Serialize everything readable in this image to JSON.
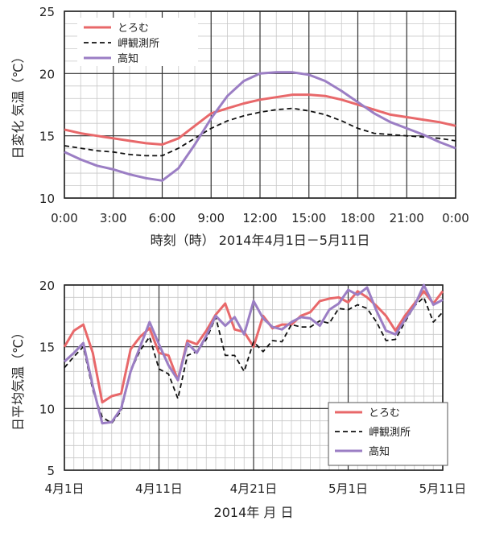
{
  "chart_data": [
    {
      "type": "line",
      "xlabel": "時刻（時） 2014年4月1日－5月11日",
      "ylabel": "日変化  気温（℃）",
      "x_ticks": [
        "0:00",
        "3:00",
        "6:00",
        "9:00",
        "12:00",
        "15:00",
        "18:00",
        "21:00",
        "0:00"
      ],
      "xlim": [
        0,
        24
      ],
      "ylim": [
        10,
        25
      ],
      "y_ticks": [
        10,
        15,
        20,
        25
      ],
      "grid": true,
      "legend_position": "top-left",
      "x": [
        0,
        1,
        2,
        3,
        4,
        5,
        6,
        7,
        8,
        9,
        10,
        11,
        12,
        13,
        14,
        15,
        16,
        17,
        18,
        19,
        20,
        21,
        22,
        23,
        24
      ],
      "series": [
        {
          "name": "とろむ",
          "color": "#e8686a",
          "dash": "solid",
          "values": [
            15.5,
            15.2,
            15.0,
            14.8,
            14.6,
            14.4,
            14.3,
            14.8,
            15.8,
            16.8,
            17.2,
            17.6,
            17.9,
            18.1,
            18.3,
            18.3,
            18.2,
            17.9,
            17.5,
            17.1,
            16.7,
            16.5,
            16.3,
            16.1,
            15.8
          ]
        },
        {
          "name": "岬観測所",
          "color": "#111111",
          "dash": "dashed",
          "values": [
            14.2,
            14.0,
            13.8,
            13.7,
            13.5,
            13.4,
            13.4,
            14.0,
            14.8,
            15.6,
            16.2,
            16.6,
            16.9,
            17.1,
            17.2,
            17.0,
            16.7,
            16.2,
            15.6,
            15.2,
            15.1,
            15.0,
            14.9,
            14.8,
            14.6
          ]
        },
        {
          "name": "高知",
          "color": "#9b7ec4",
          "dash": "solid",
          "values": [
            13.7,
            13.1,
            12.6,
            12.3,
            11.9,
            11.6,
            11.4,
            12.4,
            14.3,
            16.4,
            18.2,
            19.4,
            20.0,
            20.1,
            20.1,
            19.9,
            19.4,
            18.6,
            17.7,
            16.8,
            16.1,
            15.6,
            15.1,
            14.5,
            14.0
          ]
        }
      ]
    },
    {
      "type": "line",
      "xlabel": "2014年    月  日",
      "ylabel": "日平均気温（℃）",
      "x_ticks": [
        "4月1日",
        "4月11日",
        "4月21日",
        "5月1日",
        "5月11日"
      ],
      "x_tick_days": [
        1,
        11,
        21,
        31,
        41
      ],
      "xlim": [
        1,
        41
      ],
      "ylim": [
        5,
        20
      ],
      "y_ticks": [
        5,
        10,
        15,
        20
      ],
      "grid": true,
      "legend_position": "bottom-right",
      "x": [
        1,
        2,
        3,
        4,
        5,
        6,
        7,
        8,
        9,
        10,
        11,
        12,
        13,
        14,
        15,
        16,
        17,
        18,
        19,
        20,
        21,
        22,
        23,
        24,
        25,
        26,
        27,
        28,
        29,
        30,
        31,
        32,
        33,
        34,
        35,
        36,
        37,
        38,
        39,
        40,
        41
      ],
      "series": [
        {
          "name": "とろむ",
          "color": "#e8686a",
          "dash": "solid",
          "values": [
            15.0,
            16.3,
            16.8,
            14.5,
            10.5,
            11.0,
            11.2,
            14.8,
            15.8,
            16.5,
            14.5,
            14.3,
            12.3,
            15.5,
            15.2,
            16.3,
            17.6,
            18.5,
            16.4,
            16.2,
            15.0,
            17.5,
            16.5,
            16.8,
            16.8,
            17.5,
            17.8,
            18.7,
            18.9,
            19.0,
            18.6,
            19.5,
            19.0,
            18.3,
            17.5,
            16.3,
            17.5,
            18.5,
            19.5,
            18.5,
            19.5
          ]
        },
        {
          "name": "岬観測所",
          "color": "#111111",
          "dash": "dashed",
          "values": [
            13.3,
            14.2,
            15.0,
            11.5,
            9.3,
            8.8,
            9.8,
            13.0,
            14.7,
            15.8,
            13.2,
            12.8,
            10.8,
            14.3,
            14.6,
            15.6,
            17.4,
            14.3,
            14.3,
            13.0,
            15.4,
            14.6,
            15.5,
            15.4,
            16.8,
            16.6,
            16.6,
            17.1,
            16.9,
            18.1,
            18.0,
            18.4,
            18.1,
            17.0,
            15.5,
            15.6,
            17.0,
            18.3,
            19.0,
            17.0,
            17.8
          ]
        },
        {
          "name": "高知",
          "color": "#9b7ec4",
          "dash": "solid",
          "values": [
            13.8,
            14.5,
            15.3,
            11.8,
            8.8,
            8.9,
            10.0,
            13.0,
            15.0,
            17.0,
            15.2,
            13.5,
            12.3,
            15.3,
            14.5,
            15.9,
            17.5,
            16.7,
            17.4,
            16.0,
            18.7,
            17.3,
            16.6,
            16.4,
            17.0,
            17.4,
            17.3,
            16.7,
            18.0,
            18.5,
            19.6,
            19.2,
            19.8,
            17.9,
            16.3,
            16.0,
            17.2,
            18.3,
            20.0,
            18.4,
            18.8
          ]
        }
      ]
    }
  ]
}
